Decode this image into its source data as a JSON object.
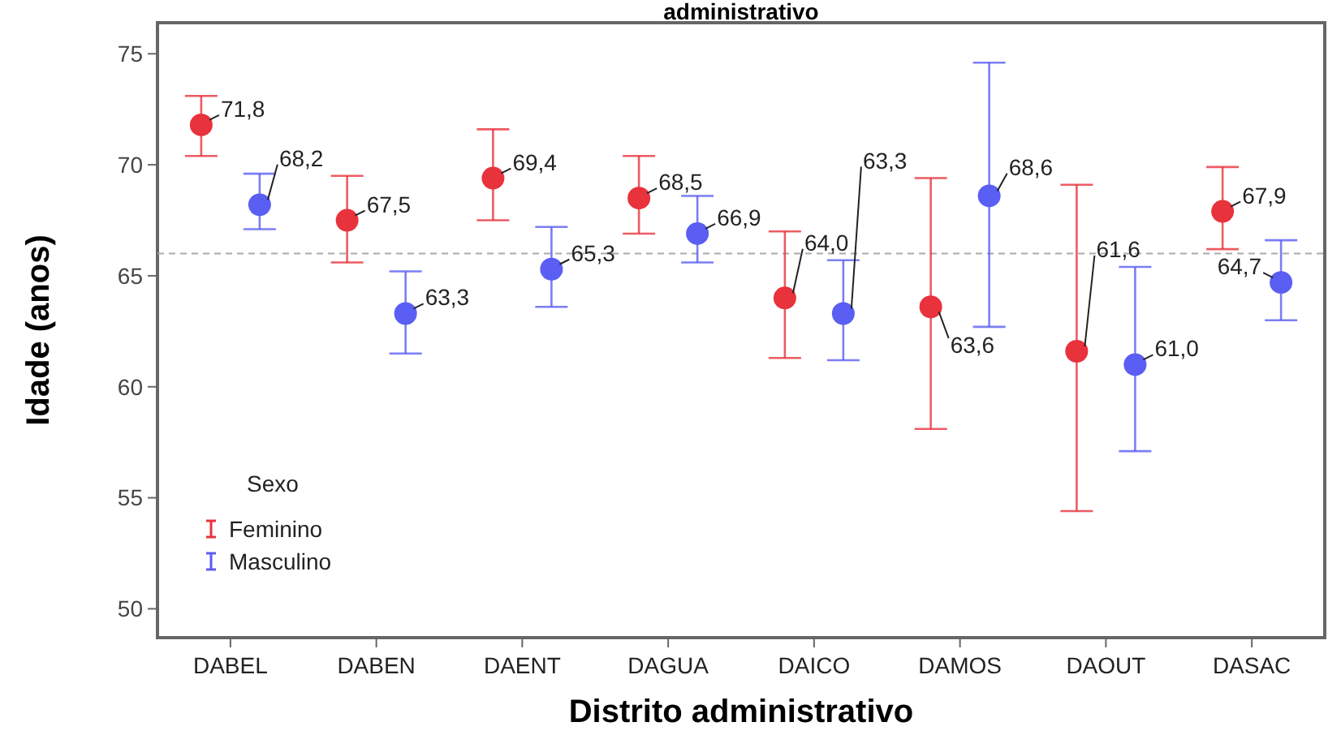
{
  "chart_data": {
    "type": "scatter",
    "title": "administrativo",
    "xlabel": "Distrito administrativo",
    "ylabel": "Idade (anos)",
    "legend_title": "Sexo",
    "legend": "bottom left",
    "marker": "circle",
    "categories": [
      "DABEL",
      "DABEN",
      "DAENT",
      "DAGUA",
      "DAICO",
      "DAMOS",
      "DAOUT",
      "DASAC"
    ],
    "ylim": [
      48.7,
      76.4
    ],
    "yticks": [
      50,
      55,
      60,
      65,
      70,
      75
    ],
    "grid": false,
    "series": [
      {
        "name": "Feminino",
        "color": "#e8323c",
        "values": [
          71.8,
          67.5,
          69.4,
          68.5,
          64.0,
          63.6,
          61.6,
          67.9
        ],
        "value_labels": [
          "71,8",
          "67,5",
          "69,4",
          "68,5",
          "64,0",
          "63,6",
          "61,6",
          "67,9"
        ],
        "errors": [
          [
            70.4,
            73.1
          ],
          [
            65.6,
            69.5
          ],
          [
            67.5,
            71.6
          ],
          [
            66.9,
            70.4
          ],
          [
            61.3,
            67.0
          ],
          [
            58.1,
            69.4
          ],
          [
            54.4,
            69.1
          ],
          [
            66.2,
            69.9
          ]
        ]
      },
      {
        "name": "Masculino",
        "color": "#5a5ef2",
        "values": [
          68.2,
          63.3,
          65.3,
          66.9,
          63.3,
          68.6,
          61.0,
          64.7
        ],
        "value_labels": [
          "68,2",
          "63,3",
          "65,3",
          "66,9",
          "63,3",
          "68,6",
          "61,0",
          "64,7"
        ],
        "errors": [
          [
            67.1,
            69.6
          ],
          [
            61.5,
            65.2
          ],
          [
            63.6,
            67.2
          ],
          [
            65.6,
            68.6
          ],
          [
            61.2,
            65.7
          ],
          [
            62.7,
            74.6
          ],
          [
            57.1,
            65.4
          ],
          [
            63.0,
            66.6
          ]
        ]
      }
    ],
    "ref_lines": [
      {
        "axis": "y",
        "value": 66.0,
        "color": "#aaaaaa",
        "line_style": "dashed"
      }
    ]
  }
}
